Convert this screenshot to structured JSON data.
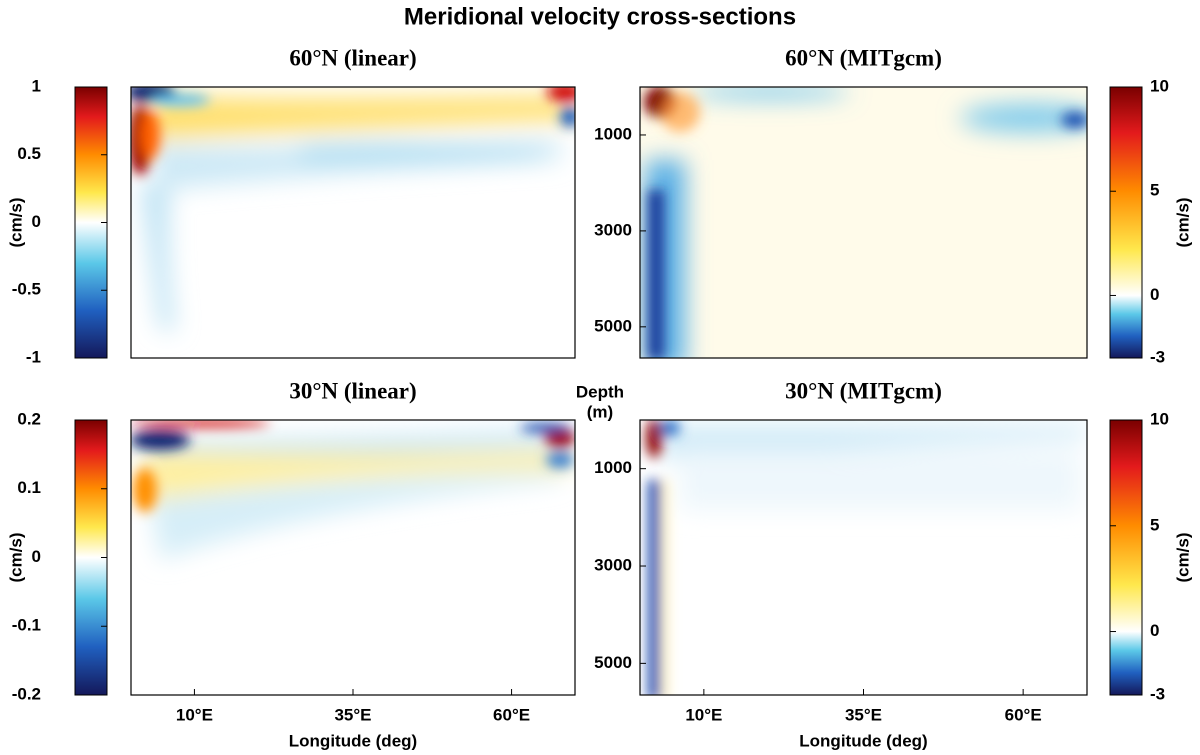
{
  "title": "Meridional velocity cross-sections",
  "depth_label": [
    "Depth",
    "(m)"
  ],
  "chart_data": [
    {
      "type": "contour",
      "title": "60°N   (linear)",
      "xlim": [
        0,
        70
      ],
      "colorbar": {
        "label": "(cm/s)",
        "lim": [
          -1,
          1
        ],
        "ticks": [
          1,
          0.5,
          0,
          -0.5,
          -1
        ]
      }
    },
    {
      "type": "contour",
      "title": "60°N   (MITgcm)",
      "xlim": [
        0,
        70
      ],
      "ylim": [
        0,
        5650
      ],
      "yticks": [
        1000,
        3000,
        5000
      ],
      "colorbar": {
        "label": "(cm/s)",
        "lim": [
          -3,
          10
        ],
        "ticks": [
          10,
          5,
          0,
          -3
        ]
      }
    },
    {
      "type": "contour",
      "title": "30°N   (linear)",
      "xlabel": "Longitude (deg)",
      "xlim": [
        0,
        70
      ],
      "xticks": [
        {
          "value": 10,
          "label": "10°E"
        },
        {
          "value": 35,
          "label": "35°E"
        },
        {
          "value": 60,
          "label": "60°E"
        }
      ],
      "colorbar": {
        "label": "(cm/s)",
        "lim": [
          -0.2,
          0.2
        ],
        "ticks": [
          0.2,
          0.1,
          0,
          -0.1,
          -0.2
        ]
      }
    },
    {
      "type": "contour",
      "title": "30°N   (MITgcm)",
      "xlabel": "Longitude (deg)",
      "xlim": [
        0,
        70
      ],
      "xticks": [
        {
          "value": 10,
          "label": "10°E"
        },
        {
          "value": 35,
          "label": "35°E"
        },
        {
          "value": 60,
          "label": "60°E"
        }
      ],
      "ylim": [
        0,
        5650
      ],
      "yticks": [
        1000,
        3000,
        5000
      ],
      "colorbar": {
        "label": "(cm/s)",
        "lim": [
          -3,
          10
        ],
        "ticks": [
          10,
          5,
          0,
          -3
        ]
      }
    }
  ]
}
